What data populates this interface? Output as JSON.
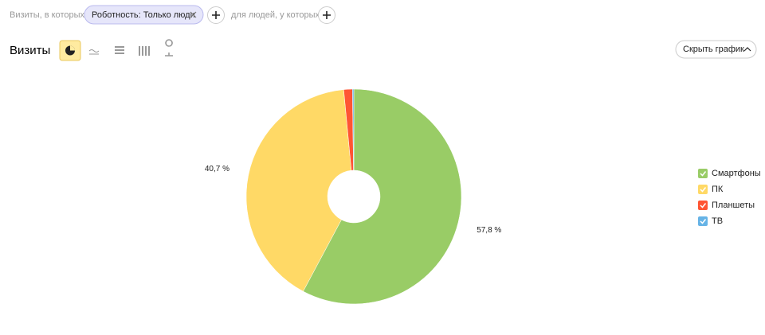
{
  "filter": {
    "prefix": "Визиты, в которых",
    "chip": "Роботность: Только люди",
    "suffix": "для людей, у которых"
  },
  "header": {
    "title": "Визиты",
    "hide_button": "Скрыть график"
  },
  "chart_data": {
    "type": "pie",
    "donut": true,
    "categories": [
      "Смартфоны",
      "ПК",
      "Планшеты",
      "ТВ"
    ],
    "values": [
      57.8,
      40.7,
      1.3,
      0.2
    ],
    "value_labels": [
      "57,8 %",
      "40,7 %",
      null,
      null
    ],
    "colors": [
      "#99cc66",
      "#ffd966",
      "#ff5533",
      "#66b3e6"
    ],
    "legend": "right"
  }
}
